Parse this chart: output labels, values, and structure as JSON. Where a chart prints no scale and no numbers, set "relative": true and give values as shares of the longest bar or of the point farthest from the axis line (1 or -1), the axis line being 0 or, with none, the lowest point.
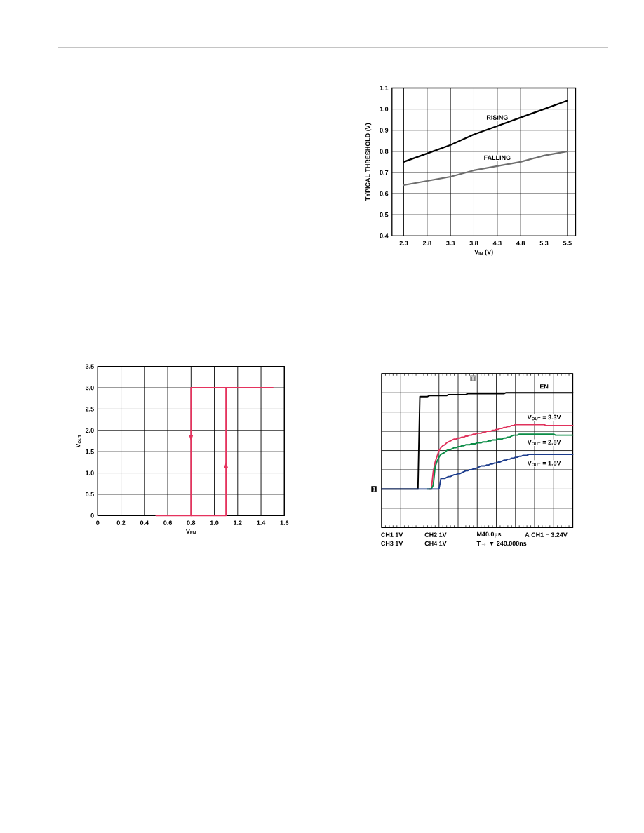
{
  "chart_data": [
    {
      "type": "line",
      "categories": [
        "2.3",
        "2.8",
        "3.3",
        "3.8",
        "4.3",
        "4.8",
        "5.3",
        "5.5"
      ],
      "series": [
        {
          "name": "RISING",
          "color": "#000000",
          "values": [
            0.75,
            0.79,
            0.83,
            0.88,
            0.92,
            0.96,
            1,
            1.04
          ]
        },
        {
          "name": "FALLING",
          "color": "#6e6e6e",
          "values": [
            0.64,
            0.66,
            0.68,
            0.71,
            0.73,
            0.75,
            0.78,
            0.8
          ]
        }
      ],
      "xlabel": "V$_{IN}$ (V)",
      "ylabel": "TYPICAL THRESHOLD (V)",
      "ylim": [
        0.4,
        1.1
      ],
      "yticks": [
        0.4,
        0.5,
        0.6,
        0.7,
        0.8,
        0.9,
        {
          "value": 1,
          "label": "1.0"
        },
        1.1
      ],
      "grid": true
    },
    {
      "type": "line",
      "series": [
        {
          "color": "#e5335e",
          "x": [
            0.5,
            1.1,
            1.1,
            1.5
          ],
          "values": [
            0,
            0,
            3,
            3
          ]
        },
        {
          "color": "#e5335e",
          "x": [
            1.5,
            0.8,
            0.8
          ],
          "values": [
            3,
            3,
            0
          ]
        }
      ],
      "xlabel": "V$_{EN}$",
      "ylabel": "V$_{OUT}$",
      "xlim": [
        0,
        1.6
      ],
      "xticks": [
        0,
        0.2,
        0.4,
        0.6,
        0.8,
        {
          "value": 1,
          "label": "1.0"
        },
        1.2,
        1.4,
        1.6
      ],
      "ylim": [
        0,
        3.5
      ],
      "yticks": [
        0,
        0.5,
        {
          "value": 1,
          "label": "1.0"
        },
        1.5,
        {
          "value": 2,
          "label": "2.0"
        },
        2.5,
        {
          "value": 3,
          "label": "3.0"
        },
        3.5
      ],
      "grid": true
    },
    {
      "type": "line",
      "relative": true,
      "grid": true,
      "categories": [
        null,
        null,
        null,
        null,
        null,
        null,
        null,
        null,
        null,
        null,
        null,
        null,
        null,
        null,
        null,
        null,
        null,
        null,
        null,
        null,
        null,
        null,
        null,
        null,
        null,
        null,
        null,
        null,
        null,
        null,
        null,
        null,
        null,
        null,
        null,
        null,
        null,
        null,
        null,
        null,
        null,
        null,
        null,
        null,
        null,
        null,
        null,
        null,
        null,
        null,
        null,
        null,
        null,
        null,
        null,
        null,
        null,
        null,
        null,
        null,
        null,
        null,
        null,
        null,
        null,
        null,
        null,
        null,
        null,
        null,
        null,
        null,
        null,
        null,
        null,
        null,
        null,
        null,
        null,
        null,
        null,
        null,
        null,
        null,
        null,
        null,
        null,
        null,
        null,
        null,
        null,
        null,
        null,
        null,
        null,
        null,
        null,
        null,
        null,
        null,
        null
      ],
      "series": [
        {
          "name": "EN",
          "color": "#000000",
          "values": [
            0,
            0,
            0,
            0,
            0,
            0,
            0,
            0,
            0,
            0,
            0,
            0,
            0,
            0,
            0,
            0,
            0,
            0,
            0,
            0,
            0.96,
            0.96,
            0.96,
            0.96,
            0.96,
            0.97,
            0.97,
            0.97,
            0.97,
            0.97,
            0.97,
            0.97,
            0.97,
            0.97,
            0.97,
            0.98,
            0.98,
            0.98,
            0.98,
            0.98,
            0.98,
            0.98,
            0.98,
            0.98,
            0.98,
            0.99,
            0.99,
            0.99,
            0.99,
            0.99,
            0.99,
            0.99,
            0.99,
            0.99,
            0.99,
            0.99,
            0.99,
            0.99,
            0.99,
            0.99,
            0.99,
            0.99,
            0.99,
            0.99,
            0.99,
            1,
            1,
            1,
            1,
            1,
            1,
            1,
            1,
            1,
            1,
            1,
            1,
            1,
            1,
            1,
            1,
            1,
            1,
            1,
            1,
            1,
            1,
            1,
            1,
            1,
            1,
            1,
            1,
            1,
            1,
            1,
            1,
            1,
            1,
            1,
            1
          ]
        },
        {
          "name": "V$_{OUT}$ = 3.3V",
          "color": "#e0325c",
          "values": [
            null,
            null,
            null,
            null,
            null,
            null,
            null,
            null,
            null,
            null,
            null,
            null,
            null,
            null,
            null,
            null,
            null,
            null,
            null,
            null,
            null,
            null,
            null,
            null,
            null,
            0,
            0,
            0.18,
            0.28,
            0.34,
            0.4,
            0.43,
            0.45,
            0.46,
            0.48,
            0.49,
            0.5,
            0.51,
            0.52,
            0.52,
            0.53,
            0.53,
            0.54,
            0.54,
            0.55,
            0.55,
            0.56,
            0.56,
            0.57,
            0.57,
            0.58,
            0.58,
            0.58,
            0.59,
            0.59,
            0.6,
            0.6,
            0.6,
            0.61,
            0.61,
            0.62,
            0.62,
            0.63,
            0.63,
            0.64,
            0.64,
            0.65,
            0.65,
            0.66,
            0.66,
            0.67,
            0.67,
            0.67,
            0.67,
            0.67,
            0.67,
            0.67,
            0.67,
            0.67,
            0.67,
            0.67,
            0.67,
            0.67,
            0.67,
            0.67,
            0.67,
            0.66,
            0.66,
            0.66,
            0.66,
            0.66,
            0.66,
            0.66,
            0.66,
            0.66,
            0.66,
            0.66,
            0.66,
            0.66,
            0.66,
            0.66
          ]
        },
        {
          "name": "V$_{OUT}$ = 2.8V",
          "color": "#0a8c46",
          "values": [
            null,
            null,
            null,
            null,
            null,
            null,
            null,
            null,
            null,
            null,
            null,
            null,
            null,
            null,
            null,
            null,
            null,
            null,
            null,
            null,
            null,
            null,
            null,
            null,
            0,
            0,
            0,
            0.04,
            0.23,
            0.29,
            0.33,
            0.36,
            0.37,
            0.38,
            0.4,
            0.41,
            0.41,
            0.42,
            0.43,
            0.43,
            0.44,
            0.44,
            0.45,
            0.45,
            0.46,
            0.46,
            0.46,
            0.47,
            0.47,
            0.47,
            0.48,
            0.48,
            0.48,
            0.49,
            0.49,
            0.49,
            0.5,
            0.5,
            0.51,
            0.51,
            0.51,
            0.52,
            0.52,
            0.52,
            0.53,
            0.53,
            0.54,
            0.54,
            0.55,
            0.56,
            0.56,
            0.56,
            0.57,
            0.57,
            0.57,
            0.57,
            0.57,
            0.57,
            0.57,
            0.57,
            0.57,
            0.57,
            0.57,
            0.57,
            0.57,
            0.57,
            0.57,
            0.57,
            0.57,
            0.57,
            0.57,
            0.56,
            0.56,
            0.56,
            0.56,
            0.56,
            0.56,
            0.56,
            0.56,
            0.56,
            0.56
          ]
        },
        {
          "name": "V$_{OUT}$ = 1.8V",
          "color": "#1c3c8c",
          "values": [
            0,
            0,
            0,
            0,
            0,
            0,
            0,
            0,
            0,
            0,
            0,
            0,
            0,
            0,
            0,
            0,
            0,
            0,
            0,
            0,
            0,
            0,
            0,
            0,
            0,
            0,
            0,
            0,
            0,
            0,
            0,
            0.11,
            0.11,
            0.11,
            0.12,
            0.13,
            0.13,
            0.14,
            0.15,
            0.15,
            0.16,
            0.16,
            0.17,
            0.18,
            0.19,
            0.19,
            0.2,
            0.2,
            0.21,
            0.21,
            0.22,
            0.23,
            0.24,
            0.24,
            0.24,
            0.25,
            0.25,
            0.26,
            0.26,
            0.27,
            0.27,
            0.28,
            0.28,
            0.29,
            0.3,
            0.3,
            0.31,
            0.31,
            0.32,
            0.32,
            0.33,
            0.33,
            0.34,
            0.34,
            0.35,
            0.35,
            0.35,
            0.36,
            0.36,
            0.36,
            0.36,
            0.36,
            0.36,
            0.36,
            0.36,
            0.36,
            0.36,
            0.36,
            0.36,
            0.36,
            0.36,
            0.36,
            0.36,
            0.36,
            0.36,
            0.36,
            0.36,
            0.36,
            0.36,
            0.36,
            0.36
          ]
        }
      ],
      "annotations": [
        "1",
        "T",
        "CH1 1V",
        "CH2 1V",
        "M40.0µs",
        "A CH1 ⌐ 3.24V",
        "CH3 1V",
        "CH4 1V",
        "T→ ▼ 240.000ns"
      ]
    }
  ]
}
